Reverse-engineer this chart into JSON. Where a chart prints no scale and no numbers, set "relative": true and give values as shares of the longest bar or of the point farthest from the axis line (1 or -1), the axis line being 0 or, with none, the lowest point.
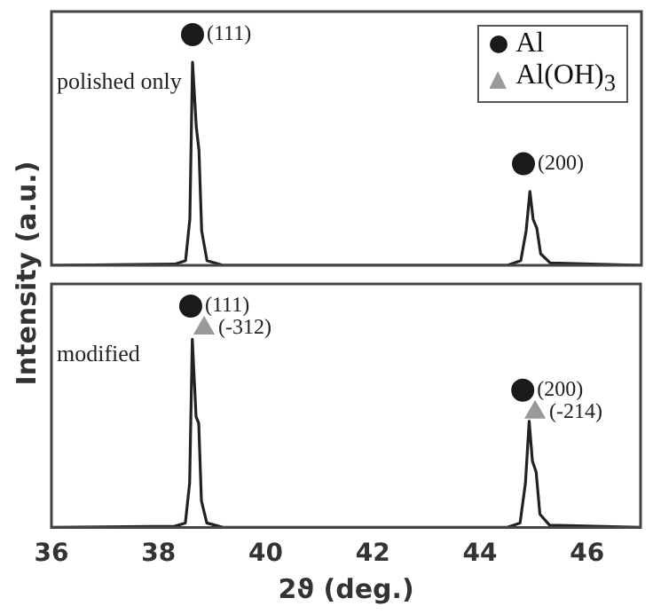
{
  "chart_data": [
    {
      "type": "line",
      "relative": true,
      "ylabel": "Intensity (a.u.)",
      "xlim": [
        36,
        47
      ],
      "xticks": [
        36,
        38,
        40,
        42,
        44,
        46
      ],
      "tick_labels": false,
      "legend": "top right",
      "annotations": [
        "polished only",
        {
          "text": "(111)",
          "x": 38.63,
          "y": 1
        },
        {
          "text": "(200)",
          "x": 44.8,
          "y": 0.44
        }
      ],
      "series": [
        {
          "color": "#222222",
          "x": [
            36,
            38.3,
            38.5,
            38.58,
            38.63,
            38.7,
            38.75,
            38.8,
            38.9,
            39.2,
            44.5,
            44.75,
            44.85,
            44.92,
            44.98,
            45.05,
            45.12,
            45.3,
            47
          ],
          "values": [
            0,
            0.005,
            0.02,
            0.2,
            0.88,
            0.6,
            0.5,
            0.15,
            0.02,
            0,
            0,
            0.02,
            0.15,
            0.32,
            0.2,
            0.16,
            0.05,
            0.01,
            0
          ]
        },
        {
          "name": "Al",
          "type": "scatter",
          "marker": "circle",
          "color": "#1a1a1a",
          "x": [
            38.63,
            44.8
          ],
          "values": [
            1,
            0.44
          ]
        },
        {
          "name": "Al(OH)$_{3}$",
          "type": "scatter",
          "marker": "triangle",
          "color": "#999999"
        }
      ]
    },
    {
      "type": "line",
      "relative": true,
      "xlabel": "2ϑ (deg.)",
      "xlim": [
        36,
        47
      ],
      "xticks": [
        36,
        38,
        40,
        42,
        44,
        46
      ],
      "tick_labels": "x",
      "annotations": [
        "modified",
        {
          "text": "(111)",
          "x": 38.6,
          "y": 1
        },
        {
          "text": "(-312)",
          "x": 38.85,
          "y": 0.9
        },
        {
          "text": "(200)",
          "x": 44.8,
          "y": 0.62
        },
        {
          "text": "(-214)",
          "x": 45.03,
          "y": 0.52
        }
      ],
      "series": [
        {
          "color": "#222222",
          "x": [
            36,
            38.3,
            38.5,
            38.58,
            38.63,
            38.7,
            38.75,
            38.8,
            38.9,
            39.2,
            44.5,
            44.75,
            44.85,
            44.92,
            44.98,
            45.05,
            45.12,
            45.3,
            47
          ],
          "values": [
            0,
            0.005,
            0.02,
            0.2,
            0.85,
            0.5,
            0.47,
            0.12,
            0.02,
            0,
            0,
            0.02,
            0.2,
            0.48,
            0.3,
            0.25,
            0.06,
            0.01,
            0
          ]
        },
        {
          "type": "scatter",
          "marker": "circle",
          "color": "#1a1a1a",
          "x": [
            38.6,
            44.8
          ],
          "values": [
            1,
            0.62
          ]
        },
        {
          "type": "scatter",
          "marker": "triangle",
          "color": "#999999",
          "x": [
            38.85,
            45.03
          ],
          "values": [
            0.9,
            0.52
          ]
        }
      ]
    }
  ]
}
